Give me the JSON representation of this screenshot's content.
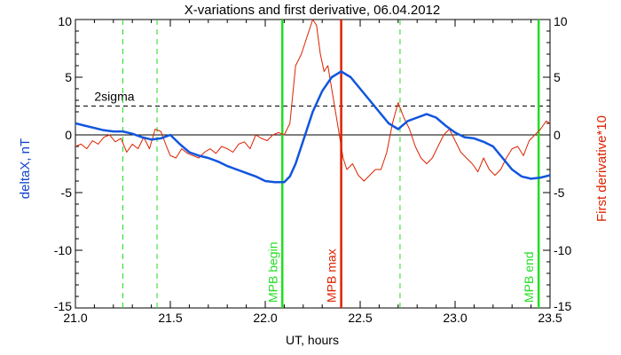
{
  "chart_data": {
    "type": "line",
    "title": "X-variations and first derivative, 06.04.2012",
    "xlabel": "UT, hours",
    "ylabel_left": "deltaX, nT",
    "ylabel_right": "First derivative*10",
    "xlim": [
      21.0,
      23.5
    ],
    "ylim": [
      -15,
      10
    ],
    "xticks": [
      21.0,
      21.5,
      22.0,
      22.5,
      23.0,
      23.5
    ],
    "xtick_labels": [
      "21.0",
      "21.5",
      "22.0",
      "22.5",
      "23.0",
      "23.5"
    ],
    "yticks": [
      -15,
      -10,
      -5,
      0,
      5,
      10
    ],
    "ytick_labels": [
      "-15",
      "-10",
      "-5",
      "0",
      "5",
      "10"
    ],
    "grid": false,
    "hlines": [
      {
        "y": 0,
        "style": "solid",
        "color": "#000000"
      },
      {
        "y": 2.5,
        "style": "dashed",
        "color": "#000000",
        "label": "2sigma",
        "label_x": 21.1
      }
    ],
    "vlines": [
      {
        "x": 21.25,
        "style": "dashed",
        "color": "#22dd22",
        "label": ""
      },
      {
        "x": 21.43,
        "style": "dashed",
        "color": "#22dd22",
        "label": ""
      },
      {
        "x": 22.09,
        "style": "solid",
        "color": "#22dd22",
        "label": "MPB begin"
      },
      {
        "x": 22.4,
        "style": "solid",
        "color": "#dd2200",
        "label": "MPB max"
      },
      {
        "x": 22.71,
        "style": "dashed",
        "color": "#22dd22",
        "label": ""
      },
      {
        "x": 23.44,
        "style": "solid",
        "color": "#22dd22",
        "label": "MPB end"
      }
    ],
    "series": [
      {
        "name": "deltaX",
        "color": "#1155dd",
        "axis": "left",
        "x": [
          21.0,
          21.05,
          21.1,
          21.15,
          21.2,
          21.25,
          21.3,
          21.35,
          21.4,
          21.45,
          21.5,
          21.55,
          21.6,
          21.65,
          21.7,
          21.75,
          21.8,
          21.85,
          21.9,
          21.95,
          22.0,
          22.05,
          22.1,
          22.13,
          22.16,
          22.2,
          22.25,
          22.3,
          22.35,
          22.4,
          22.45,
          22.5,
          22.55,
          22.6,
          22.65,
          22.7,
          22.75,
          22.8,
          22.85,
          22.9,
          22.95,
          23.0,
          23.05,
          23.1,
          23.15,
          23.2,
          23.25,
          23.3,
          23.35,
          23.4,
          23.45,
          23.5
        ],
        "y": [
          1.0,
          0.8,
          0.6,
          0.4,
          0.3,
          0.3,
          0.1,
          -0.2,
          -0.4,
          -0.3,
          0.0,
          -0.8,
          -1.5,
          -1.8,
          -2.0,
          -2.3,
          -2.7,
          -3.0,
          -3.3,
          -3.6,
          -4.0,
          -4.1,
          -4.1,
          -3.6,
          -2.5,
          -0.5,
          2.0,
          3.8,
          5.0,
          5.5,
          5.0,
          4.0,
          3.0,
          2.0,
          1.0,
          0.5,
          1.2,
          1.5,
          1.8,
          1.5,
          0.8,
          0.2,
          -0.2,
          -0.3,
          -0.6,
          -1.0,
          -2.0,
          -3.0,
          -3.6,
          -3.8,
          -3.7,
          -3.5
        ]
      },
      {
        "name": "First derivative*10",
        "color": "#dd2200",
        "axis": "right",
        "x": [
          21.0,
          21.03,
          21.06,
          21.09,
          21.12,
          21.15,
          21.18,
          21.21,
          21.24,
          21.27,
          21.3,
          21.33,
          21.36,
          21.39,
          21.42,
          21.45,
          21.48,
          21.5,
          21.53,
          21.56,
          21.59,
          21.62,
          21.65,
          21.68,
          21.71,
          21.74,
          21.77,
          21.8,
          21.83,
          21.86,
          21.89,
          21.92,
          21.95,
          21.98,
          22.01,
          22.04,
          22.07,
          22.1,
          22.13,
          22.16,
          22.19,
          22.22,
          22.25,
          22.27,
          22.29,
          22.31,
          22.33,
          22.35,
          22.37,
          22.39,
          22.41,
          22.43,
          22.46,
          22.49,
          22.52,
          22.55,
          22.58,
          22.61,
          22.64,
          22.67,
          22.7,
          22.73,
          22.76,
          22.79,
          22.82,
          22.85,
          22.88,
          22.91,
          22.94,
          22.97,
          23.0,
          23.03,
          23.06,
          23.09,
          23.12,
          23.15,
          23.18,
          23.21,
          23.24,
          23.27,
          23.3,
          23.33,
          23.36,
          23.39,
          23.42,
          23.45,
          23.48,
          23.5
        ],
        "y": [
          -1.0,
          -0.8,
          -1.2,
          -0.5,
          -0.8,
          -0.2,
          0.0,
          -0.6,
          -0.3,
          -1.5,
          -0.8,
          -1.2,
          -0.2,
          -1.2,
          0.5,
          0.3,
          -1.0,
          -1.8,
          -2.0,
          -1.2,
          -1.6,
          -1.8,
          -2.0,
          -1.5,
          -1.2,
          -1.6,
          -1.0,
          -1.2,
          -1.5,
          -0.8,
          -0.6,
          -1.2,
          0.0,
          -0.3,
          -0.5,
          0.0,
          0.2,
          0.0,
          1.0,
          6.0,
          7.0,
          8.5,
          10.0,
          9.5,
          7.0,
          5.5,
          6.0,
          4.0,
          2.0,
          0.0,
          -2.0,
          -3.0,
          -2.5,
          -3.5,
          -4.0,
          -3.5,
          -3.0,
          -3.0,
          -1.5,
          1.0,
          2.8,
          1.5,
          0.5,
          -1.0,
          -2.0,
          -2.5,
          -2.0,
          -1.0,
          0.0,
          0.5,
          -0.5,
          -1.5,
          -2.0,
          -2.5,
          -3.2,
          -2.0,
          -3.0,
          -3.5,
          -3.0,
          -2.0,
          -1.2,
          -1.0,
          -1.8,
          -0.5,
          0.0,
          0.5,
          1.2,
          1.0
        ]
      }
    ]
  }
}
